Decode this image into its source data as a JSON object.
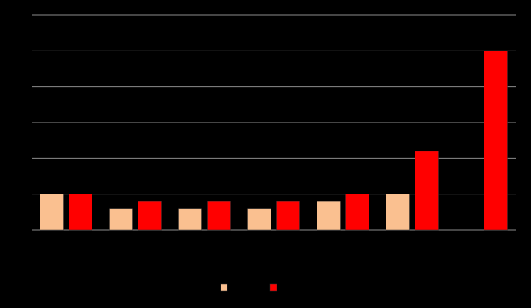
{
  "chart_data": {
    "type": "bar",
    "categories": [
      null,
      null,
      null,
      null,
      null,
      null,
      null
    ],
    "series": [
      {
        "color": "#fac090",
        "values": [
          1,
          0.6,
          0.6,
          0.6,
          0.8,
          1,
          null
        ]
      },
      {
        "color": "#ff0000",
        "values": [
          1,
          0.8,
          0.8,
          0.8,
          1,
          2.2,
          5
        ]
      }
    ],
    "ylim": [
      0,
      6
    ],
    "yticks": [
      0,
      1,
      2,
      3,
      4,
      5,
      6
    ],
    "grid": true
  }
}
